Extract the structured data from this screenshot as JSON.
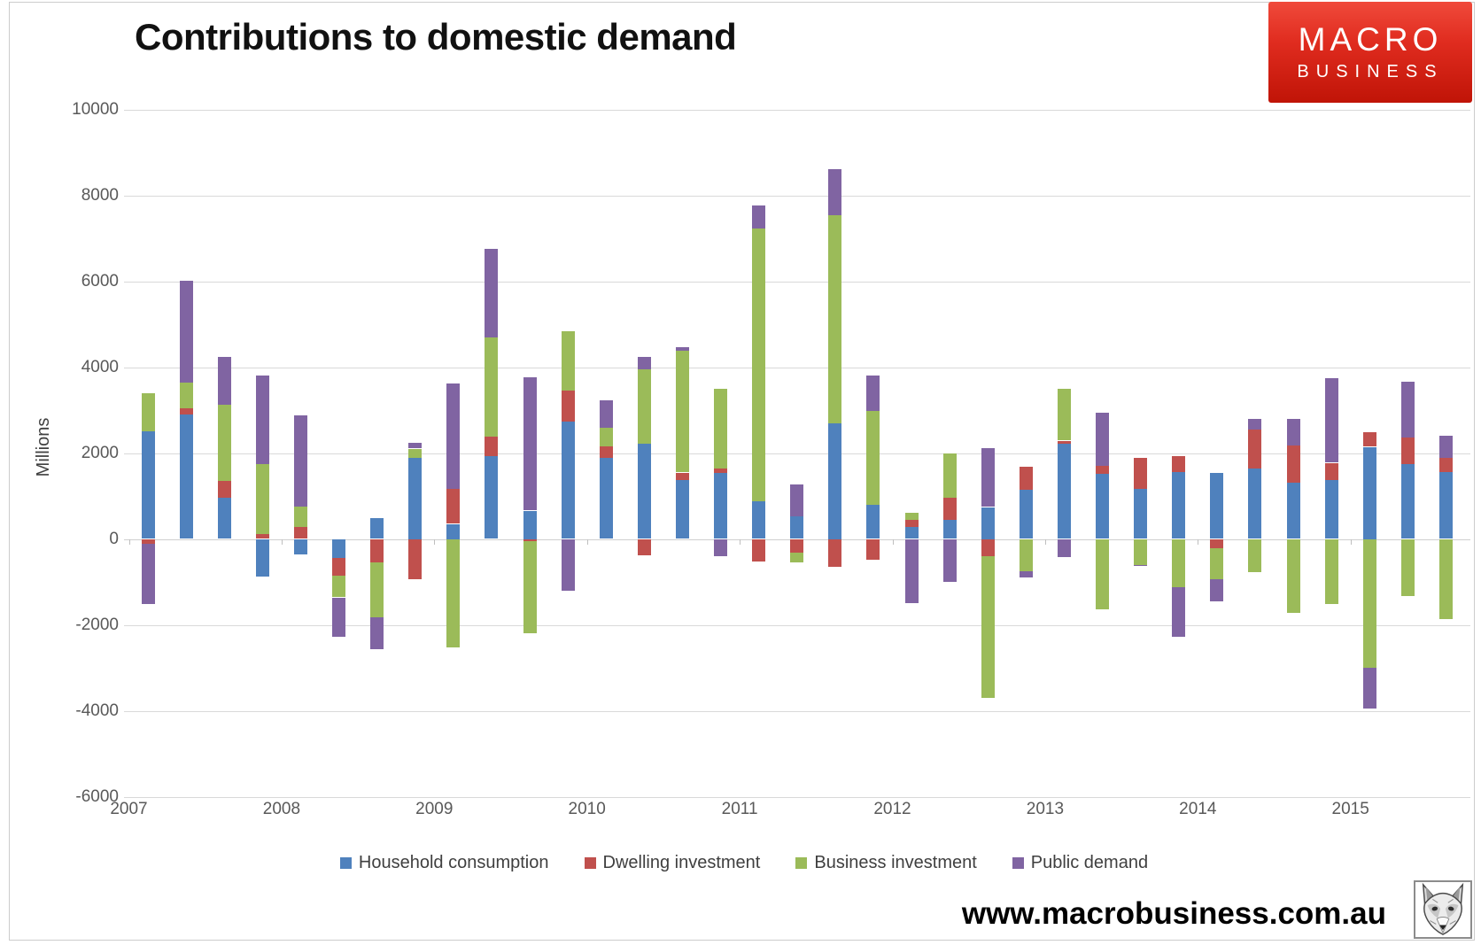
{
  "header": {
    "title": "Contributions to domestic demand"
  },
  "logo": {
    "line1": "MACRO",
    "line2": "BUSINESS",
    "background": "#d6281c",
    "text_color": "#ffffff"
  },
  "footer": {
    "website": "www.macrobusiness.com.au",
    "fox_logo": "fox-sketch-icon"
  },
  "colors": {
    "grid": "#d9d9d9",
    "axis_text": "#595959",
    "frame_border": "#cccccc"
  },
  "chart_data": {
    "type": "bar",
    "stacked": true,
    "title": "Contributions to domestic demand",
    "xlabel": "",
    "ylabel": "Millions",
    "ylim": [
      -6000,
      10000
    ],
    "ytick_step": 2000,
    "yticks": [
      10000,
      8000,
      6000,
      4000,
      2000,
      0,
      -2000,
      -4000,
      -6000
    ],
    "grid": true,
    "legend_position": "bottom",
    "x_year_labels": [
      "2007",
      "2008",
      "2009",
      "2010",
      "2011",
      "2012",
      "2013",
      "2014",
      "2015"
    ],
    "categories": [
      "2007 Q1",
      "2007 Q2",
      "2007 Q3",
      "2007 Q4",
      "2008 Q1",
      "2008 Q2",
      "2008 Q3",
      "2008 Q4",
      "2009 Q1",
      "2009 Q2",
      "2009 Q3",
      "2009 Q4",
      "2010 Q1",
      "2010 Q2",
      "2010 Q3",
      "2010 Q4",
      "2011 Q1",
      "2011 Q2",
      "2011 Q3",
      "2011 Q4",
      "2012 Q1",
      "2012 Q2",
      "2012 Q3",
      "2012 Q4",
      "2013 Q1",
      "2013 Q2",
      "2013 Q3",
      "2013 Q4",
      "2014 Q1",
      "2014 Q2",
      "2014 Q3",
      "2014 Q4",
      "2015 Q1",
      "2015 Q2",
      "2015 Q3"
    ],
    "series": [
      {
        "name": "Household consumption",
        "color": "#4f81bd",
        "values": [
          2510,
          2905,
          965,
          -870,
          -350,
          -433,
          490,
          1897,
          350,
          1930,
          660,
          2734,
          1890,
          2210,
          1380,
          1532,
          880,
          530,
          2700,
          790,
          272,
          451,
          742,
          1140,
          2213,
          1512,
          1167,
          1553,
          1532,
          1635,
          1311,
          1373,
          2145,
          1738,
          1553
        ]
      },
      {
        "name": "Dwelling investment",
        "color": "#c0504d",
        "values": [
          -120,
          140,
          390,
          120,
          280,
          -427,
          -536,
          -928,
          812,
          450,
          -48,
          722,
          265,
          -390,
          165,
          103,
          -535,
          -310,
          -650,
          -474,
          179,
          510,
          -392,
          543,
          76,
          192,
          723,
          371,
          -206,
          908,
          860,
          399,
          343,
          619,
          337
        ]
      },
      {
        "name": "Business investment",
        "color": "#9bbb59",
        "values": [
          875,
          600,
          1775,
          1620,
          470,
          -501,
          -1286,
          206,
          -2523,
          2320,
          -2152,
          1374,
          430,
          1730,
          2840,
          1856,
          6355,
          -227,
          4845,
          2186,
          153,
          1031,
          -3313,
          -755,
          1202,
          -1629,
          -598,
          -1128,
          -736,
          -771,
          -1719,
          -1513,
          -2990,
          -1335,
          -1856
        ]
      },
      {
        "name": "Public demand",
        "color": "#8064a2",
        "values": [
          -1400,
          2375,
          1115,
          2060,
          2120,
          -907,
          -742,
          140,
          2455,
          2055,
          3106,
          -1200,
          640,
          290,
          90,
          -392,
          527,
          745,
          1065,
          838,
          -1493,
          -990,
          1374,
          -151,
          -413,
          1237,
          -34,
          -1154,
          -516,
          247,
          619,
          1972,
          -963,
          1305,
          515
        ]
      }
    ]
  }
}
